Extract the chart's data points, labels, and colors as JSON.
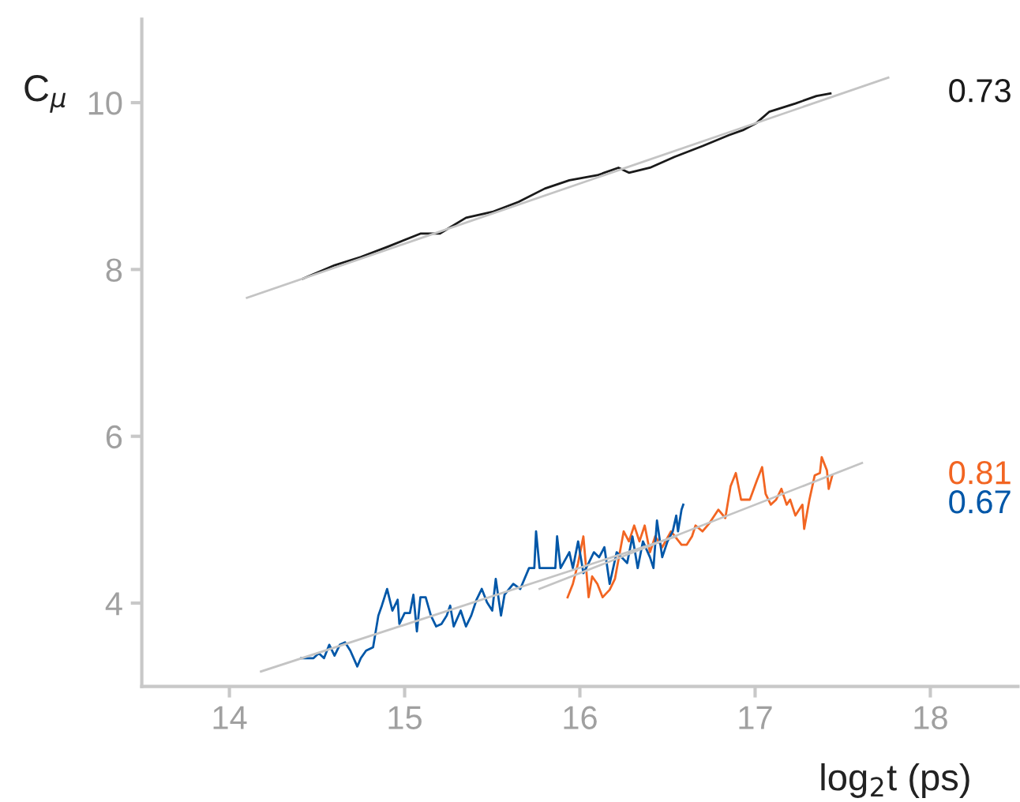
{
  "chart_data": {
    "type": "line",
    "xlabel": "log$_{2}$t (ps)",
    "ylabel": "C$_{μ}$",
    "xlim": [
      13.5,
      18.5
    ],
    "xticks": [
      14,
      15,
      16,
      17,
      18
    ],
    "ylim": [
      3,
      11
    ],
    "yticks": [
      4,
      6,
      8,
      10
    ],
    "grid": false,
    "legend": false,
    "marker": "none",
    "line_style": "solid",
    "series": [
      {
        "name": "0.73",
        "color": "#1a1a1a",
        "x": [
          14.42,
          14.6,
          14.75,
          14.9,
          15.09,
          15.2,
          15.35,
          15.5,
          15.65,
          15.8,
          15.94,
          16.1,
          16.22,
          16.28,
          16.4,
          16.54,
          16.7,
          16.85,
          16.93,
          17.01,
          17.08,
          17.23,
          17.35,
          17.43
        ],
        "values": [
          7.89,
          8.05,
          8.15,
          8.27,
          8.43,
          8.43,
          8.62,
          8.69,
          8.81,
          8.97,
          9.07,
          9.13,
          9.22,
          9.16,
          9.22,
          9.35,
          9.48,
          9.61,
          9.67,
          9.76,
          9.89,
          9.99,
          10.08,
          10.11
        ]
      },
      {
        "name": "0.81",
        "color": "#f26522",
        "x": [
          15.93,
          15.96,
          15.99,
          16.02,
          16.05,
          16.07,
          16.1,
          16.13,
          16.17,
          16.2,
          16.25,
          16.28,
          16.31,
          16.34,
          16.37,
          16.4,
          16.43,
          16.47,
          16.52,
          16.58,
          16.61,
          16.64,
          16.66,
          16.7,
          16.74,
          16.79,
          16.83,
          16.86,
          16.89,
          16.92,
          16.97,
          17.01,
          17.04,
          17.06,
          17.09,
          17.12,
          17.15,
          17.18,
          17.2,
          17.23,
          17.27,
          17.28,
          17.31,
          17.34,
          17.37,
          17.38,
          17.41,
          17.42,
          17.44
        ],
        "values": [
          4.07,
          4.23,
          4.48,
          4.8,
          4.07,
          4.32,
          4.23,
          4.07,
          4.16,
          4.29,
          4.86,
          4.74,
          4.93,
          4.74,
          4.93,
          4.61,
          4.8,
          4.67,
          4.86,
          4.7,
          4.7,
          4.8,
          4.93,
          4.86,
          4.96,
          5.12,
          5.02,
          5.4,
          5.56,
          5.24,
          5.24,
          5.47,
          5.63,
          5.31,
          5.18,
          5.24,
          5.37,
          5.18,
          5.24,
          5.05,
          5.18,
          4.89,
          5.24,
          5.53,
          5.56,
          5.75,
          5.59,
          5.37,
          5.53
        ]
      },
      {
        "name": "0.67",
        "color": "#0057a8",
        "x": [
          14.41,
          14.48,
          14.51,
          14.54,
          14.57,
          14.6,
          14.63,
          14.66,
          14.69,
          14.73,
          14.75,
          14.78,
          14.82,
          14.85,
          14.87,
          14.9,
          14.93,
          14.96,
          14.97,
          15.0,
          15.03,
          15.05,
          15.07,
          15.09,
          15.12,
          15.15,
          15.18,
          15.21,
          15.24,
          15.26,
          15.28,
          15.32,
          15.35,
          15.38,
          15.41,
          15.44,
          15.47,
          15.5,
          15.52,
          15.55,
          15.57,
          15.62,
          15.66,
          15.71,
          15.74,
          15.75,
          15.77,
          15.81,
          15.86,
          15.87,
          15.89,
          15.94,
          15.96,
          15.99,
          16.02,
          16.05,
          16.08,
          16.11,
          16.14,
          16.17,
          16.21,
          16.27,
          16.3,
          16.33,
          16.36,
          16.4,
          16.42,
          16.44,
          16.47,
          16.5,
          16.53,
          16.55,
          16.56,
          16.58,
          16.59
        ],
        "values": [
          3.34,
          3.34,
          3.4,
          3.34,
          3.5,
          3.37,
          3.5,
          3.53,
          3.43,
          3.24,
          3.34,
          3.43,
          3.47,
          3.85,
          3.97,
          4.17,
          3.91,
          4.04,
          3.75,
          3.88,
          3.88,
          4.1,
          3.66,
          4.07,
          4.07,
          3.85,
          3.72,
          3.75,
          3.85,
          3.97,
          3.72,
          3.91,
          3.72,
          3.85,
          4.04,
          4.17,
          4.01,
          3.91,
          4.29,
          3.85,
          4.1,
          4.23,
          4.17,
          4.42,
          4.42,
          4.86,
          4.42,
          4.42,
          4.42,
          4.8,
          4.42,
          4.61,
          4.42,
          4.74,
          4.36,
          4.48,
          4.61,
          4.55,
          4.67,
          4.23,
          4.61,
          4.48,
          4.8,
          4.42,
          4.74,
          4.55,
          4.42,
          4.99,
          4.55,
          4.74,
          4.86,
          5.05,
          4.86,
          5.12,
          5.18
        ]
      },
      {
        "color": "#c4c4c4",
        "x": [
          14.1,
          17.76
        ],
        "values": [
          7.66,
          10.3
        ]
      },
      {
        "color": "#c4c4c4",
        "x": [
          15.77,
          17.61
        ],
        "values": [
          4.17,
          5.68
        ]
      },
      {
        "color": "#c4c4c4",
        "x": [
          14.18,
          16.55
        ],
        "values": [
          3.18,
          4.8
        ]
      }
    ]
  }
}
